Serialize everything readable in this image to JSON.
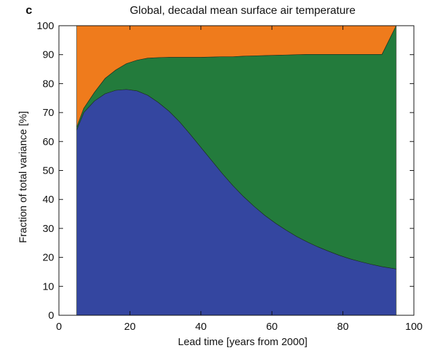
{
  "panel_label": "c",
  "chart_data": {
    "type": "area",
    "title": "Global, decadal mean surface air temperature",
    "xlabel": "Lead time  [years from 2000]",
    "ylabel": "Fraction of total variance  [%]",
    "xlim": [
      0,
      100
    ],
    "ylim": [
      0,
      100
    ],
    "xticks": [
      0,
      20,
      40,
      60,
      80,
      100
    ],
    "yticks": [
      0,
      10,
      20,
      30,
      40,
      50,
      60,
      70,
      80,
      90,
      100
    ],
    "xtick_labels": [
      "0",
      "20",
      "40",
      "60",
      "80",
      "100"
    ],
    "ytick_labels": [
      "0",
      "10",
      "20",
      "30",
      "40",
      "50",
      "60",
      "70",
      "80",
      "90",
      "100"
    ],
    "stacked": true,
    "x": [
      5,
      7,
      10,
      13,
      16,
      19,
      22,
      25,
      28,
      31,
      34,
      37,
      40,
      43,
      46,
      49,
      52,
      55,
      58,
      61,
      64,
      67,
      70,
      73,
      76,
      79,
      82,
      85,
      88,
      91,
      95
    ],
    "series": [
      {
        "color": "#3446a0",
        "values": [
          64,
          70,
          74,
          76.5,
          77.7,
          78,
          77.5,
          76,
          73.5,
          70.5,
          66.8,
          62.5,
          58,
          53.5,
          49,
          44.8,
          41,
          37.6,
          34.5,
          31.8,
          29.4,
          27.2,
          25.3,
          23.6,
          22.1,
          20.7,
          19.5,
          18.5,
          17.6,
          16.8,
          16
        ]
      },
      {
        "color": "#237b3c",
        "values": [
          1,
          1.5,
          3,
          5.3,
          7,
          8.9,
          10.6,
          12.8,
          15.5,
          18.6,
          22.3,
          26.6,
          31.1,
          35.7,
          40.3,
          44.5,
          48.5,
          52,
          55.2,
          58,
          60.5,
          62.8,
          64.8,
          66.5,
          68,
          69.4,
          70.6,
          71.6,
          72.5,
          73.3,
          84
        ]
      },
      {
        "color": "#ef7b1c",
        "values": [
          35,
          28.5,
          23,
          18.2,
          15.3,
          13.1,
          11.9,
          11.2,
          11,
          10.9,
          10.9,
          10.9,
          10.9,
          10.8,
          10.7,
          10.7,
          10.5,
          10.4,
          10.3,
          10.2,
          10.1,
          10,
          9.9,
          9.9,
          9.9,
          9.9,
          9.9,
          9.9,
          9.9,
          9.9,
          0
        ]
      }
    ]
  }
}
